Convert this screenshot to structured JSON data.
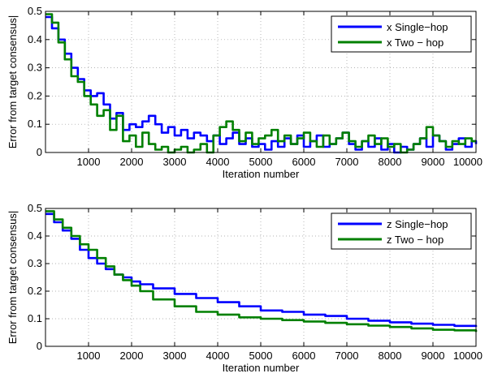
{
  "chart_data": [
    {
      "type": "line",
      "title": "",
      "xlabel": "Iteration number",
      "ylabel": "Error from target consensus|",
      "xlim": [
        0,
        10000
      ],
      "ylim": [
        0,
        0.5
      ],
      "xticks": [
        1000,
        2000,
        3000,
        4000,
        5000,
        6000,
        7000,
        8000,
        9000,
        10000
      ],
      "yticks": [
        0,
        0.1,
        0.2,
        0.3,
        0.4,
        0.5
      ],
      "grid": true,
      "legend_position": "top-right",
      "series": [
        {
          "name": "x Single−hop",
          "color": "#0000ff",
          "x": [
            0,
            150,
            300,
            450,
            600,
            750,
            900,
            1050,
            1200,
            1350,
            1500,
            1650,
            1800,
            1950,
            2100,
            2250,
            2400,
            2550,
            2700,
            2850,
            3000,
            3150,
            3300,
            3450,
            3600,
            3750,
            3900,
            4050,
            4200,
            4350,
            4500,
            4650,
            4800,
            4950,
            5100,
            5250,
            5400,
            5550,
            5700,
            5850,
            6000,
            6150,
            6300,
            6450,
            6600,
            6750,
            6900,
            7050,
            7200,
            7350,
            7500,
            7650,
            7800,
            7950,
            8100,
            8250,
            8400,
            8550,
            8700,
            8850,
            9000,
            9150,
            9300,
            9450,
            9600,
            9750,
            9900,
            10000
          ],
          "y": [
            0.48,
            0.44,
            0.4,
            0.35,
            0.3,
            0.26,
            0.22,
            0.2,
            0.21,
            0.17,
            0.12,
            0.14,
            0.08,
            0.1,
            0.09,
            0.11,
            0.13,
            0.1,
            0.07,
            0.09,
            0.06,
            0.08,
            0.05,
            0.07,
            0.06,
            0.04,
            0.06,
            0.03,
            0.05,
            0.07,
            0.03,
            0.05,
            0.02,
            0.03,
            0.01,
            0.04,
            0.02,
            0.05,
            0.03,
            0.06,
            0.02,
            0.04,
            0.06,
            0.02,
            0.03,
            0.05,
            0.07,
            0.03,
            0.01,
            0.04,
            0.02,
            0.05,
            0.01,
            0.03,
            0.0,
            0.02,
            0.01,
            0.03,
            0.05,
            0.02,
            0.06,
            0.04,
            0.01,
            0.03,
            0.05,
            0.02,
            0.04,
            0.03
          ]
        },
        {
          "name": "x Two − hop",
          "color": "#008000",
          "x": [
            0,
            150,
            300,
            450,
            600,
            750,
            900,
            1050,
            1200,
            1350,
            1500,
            1650,
            1800,
            1950,
            2100,
            2250,
            2400,
            2550,
            2700,
            2850,
            3000,
            3150,
            3300,
            3450,
            3600,
            3750,
            3900,
            4050,
            4200,
            4350,
            4500,
            4650,
            4800,
            4950,
            5100,
            5250,
            5400,
            5550,
            5700,
            5850,
            6000,
            6150,
            6300,
            6450,
            6600,
            6750,
            6900,
            7050,
            7200,
            7350,
            7500,
            7650,
            7800,
            7950,
            8100,
            8250,
            8400,
            8550,
            8700,
            8850,
            9000,
            9150,
            9300,
            9450,
            9600,
            9750,
            9900,
            10000
          ],
          "y": [
            0.49,
            0.46,
            0.39,
            0.33,
            0.27,
            0.25,
            0.2,
            0.17,
            0.13,
            0.15,
            0.08,
            0.13,
            0.04,
            0.06,
            0.02,
            0.07,
            0.03,
            0.01,
            0.02,
            0.0,
            0.01,
            0.02,
            0.0,
            0.01,
            0.03,
            0.0,
            0.06,
            0.09,
            0.11,
            0.08,
            0.04,
            0.07,
            0.03,
            0.05,
            0.06,
            0.08,
            0.04,
            0.06,
            0.03,
            0.05,
            0.07,
            0.04,
            0.02,
            0.06,
            0.03,
            0.05,
            0.07,
            0.04,
            0.02,
            0.04,
            0.06,
            0.03,
            0.05,
            0.02,
            0.03,
            0.0,
            0.01,
            0.03,
            0.05,
            0.09,
            0.06,
            0.04,
            0.02,
            0.04,
            0.03,
            0.05,
            0.04,
            0.04
          ]
        }
      ]
    },
    {
      "type": "line",
      "title": "",
      "xlabel": "Iteration number",
      "ylabel": "Error from target consensus|",
      "xlim": [
        0,
        10000
      ],
      "ylim": [
        0,
        0.5
      ],
      "xticks": [
        1000,
        2000,
        3000,
        4000,
        5000,
        6000,
        7000,
        8000,
        9000,
        10000
      ],
      "yticks": [
        0,
        0.1,
        0.2,
        0.3,
        0.4,
        0.5
      ],
      "grid": true,
      "legend_position": "top-right",
      "series": [
        {
          "name": "z Single−hop",
          "color": "#0000ff",
          "x": [
            0,
            200,
            400,
            600,
            800,
            1000,
            1200,
            1400,
            1600,
            1800,
            2000,
            2200,
            2500,
            3000,
            3500,
            4000,
            4500,
            5000,
            5500,
            6000,
            6500,
            7000,
            7500,
            8000,
            8500,
            9000,
            9500,
            10000
          ],
          "y": [
            0.48,
            0.45,
            0.42,
            0.39,
            0.35,
            0.32,
            0.3,
            0.28,
            0.26,
            0.25,
            0.235,
            0.225,
            0.21,
            0.19,
            0.175,
            0.16,
            0.145,
            0.13,
            0.125,
            0.115,
            0.11,
            0.1,
            0.093,
            0.087,
            0.082,
            0.078,
            0.074,
            0.071
          ]
        },
        {
          "name": "z Two − hop",
          "color": "#008000",
          "x": [
            0,
            200,
            400,
            600,
            800,
            1000,
            1200,
            1400,
            1600,
            1800,
            2000,
            2200,
            2500,
            3000,
            3500,
            4000,
            4500,
            5000,
            5500,
            6000,
            6500,
            7000,
            7500,
            8000,
            8500,
            9000,
            9500,
            10000
          ],
          "y": [
            0.49,
            0.46,
            0.43,
            0.4,
            0.37,
            0.35,
            0.32,
            0.29,
            0.26,
            0.24,
            0.22,
            0.2,
            0.17,
            0.145,
            0.125,
            0.115,
            0.105,
            0.1,
            0.095,
            0.09,
            0.085,
            0.08,
            0.075,
            0.07,
            0.065,
            0.06,
            0.058,
            0.052
          ]
        }
      ]
    }
  ]
}
